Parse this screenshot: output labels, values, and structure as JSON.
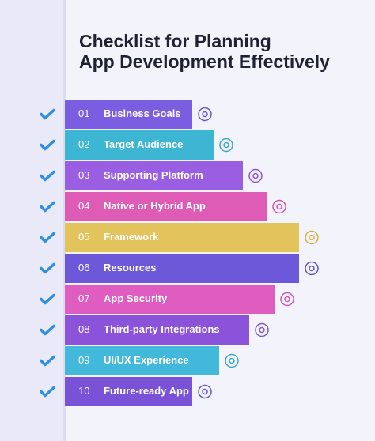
{
  "header": {
    "title_lines": [
      "Checklist for Planning",
      "App Development Effectively"
    ]
  },
  "items": [
    {
      "number": "01",
      "label": "Business Goals"
    },
    {
      "number": "02",
      "label": "Target Audience"
    },
    {
      "number": "03",
      "label": "Supporting Platform"
    },
    {
      "number": "04",
      "label": "Native or Hybrid App"
    },
    {
      "number": "05",
      "label": "Framework"
    },
    {
      "number": "06",
      "label": "Resources"
    },
    {
      "number": "07",
      "label": "App Security"
    },
    {
      "number": "08",
      "label": "Third-party Integrations"
    },
    {
      "number": "09",
      "label": "UI/UX Experience"
    },
    {
      "number": "10",
      "label": "Future-ready App"
    }
  ]
}
